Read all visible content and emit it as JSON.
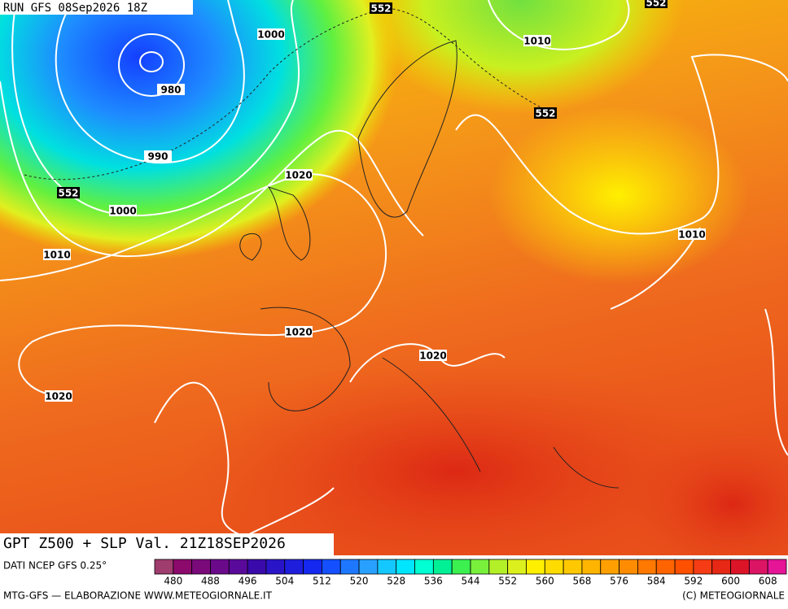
{
  "header": {
    "run": "RUN GFS 08Sep2026 18Z"
  },
  "map": {
    "isobar_labels": [
      1000,
      980,
      990,
      1000,
      1010,
      1020,
      1010,
      1010,
      1020,
      1020,
      1020
    ],
    "z500_labels": [
      552,
      552,
      552,
      552
    ]
  },
  "title": "GPT Z500 + SLP Val. 21Z18SEP2026",
  "source": "DATI NCEP GFS 0.25°",
  "colorbar": {
    "ticks": [
      480,
      488,
      496,
      504,
      512,
      520,
      528,
      536,
      544,
      552,
      560,
      568,
      576,
      584,
      592,
      600,
      608
    ],
    "colors": [
      "#9e3d6e",
      "#8b0a6c",
      "#7a0a7a",
      "#6a0a8a",
      "#5a0a9a",
      "#3a0aaa",
      "#2a14c8",
      "#1e1edc",
      "#1428f0",
      "#1450ff",
      "#1e78ff",
      "#28a0ff",
      "#14c8ff",
      "#00e6ff",
      "#00ffd2",
      "#00f096",
      "#3cf050",
      "#78f03c",
      "#b4f028",
      "#dcf01e",
      "#fff000",
      "#ffdc00",
      "#ffc800",
      "#ffb400",
      "#ffa000",
      "#ff8c00",
      "#ff7800",
      "#ff6400",
      "#ff5000",
      "#f53c14",
      "#e62814",
      "#dc1428",
      "#dc1464",
      "#e61496"
    ]
  },
  "footer": {
    "left": "MTG-GFS — ELABORAZIONE WWW.METEOGIORNALE.IT",
    "right": "(C) METEOGIORNALE"
  }
}
